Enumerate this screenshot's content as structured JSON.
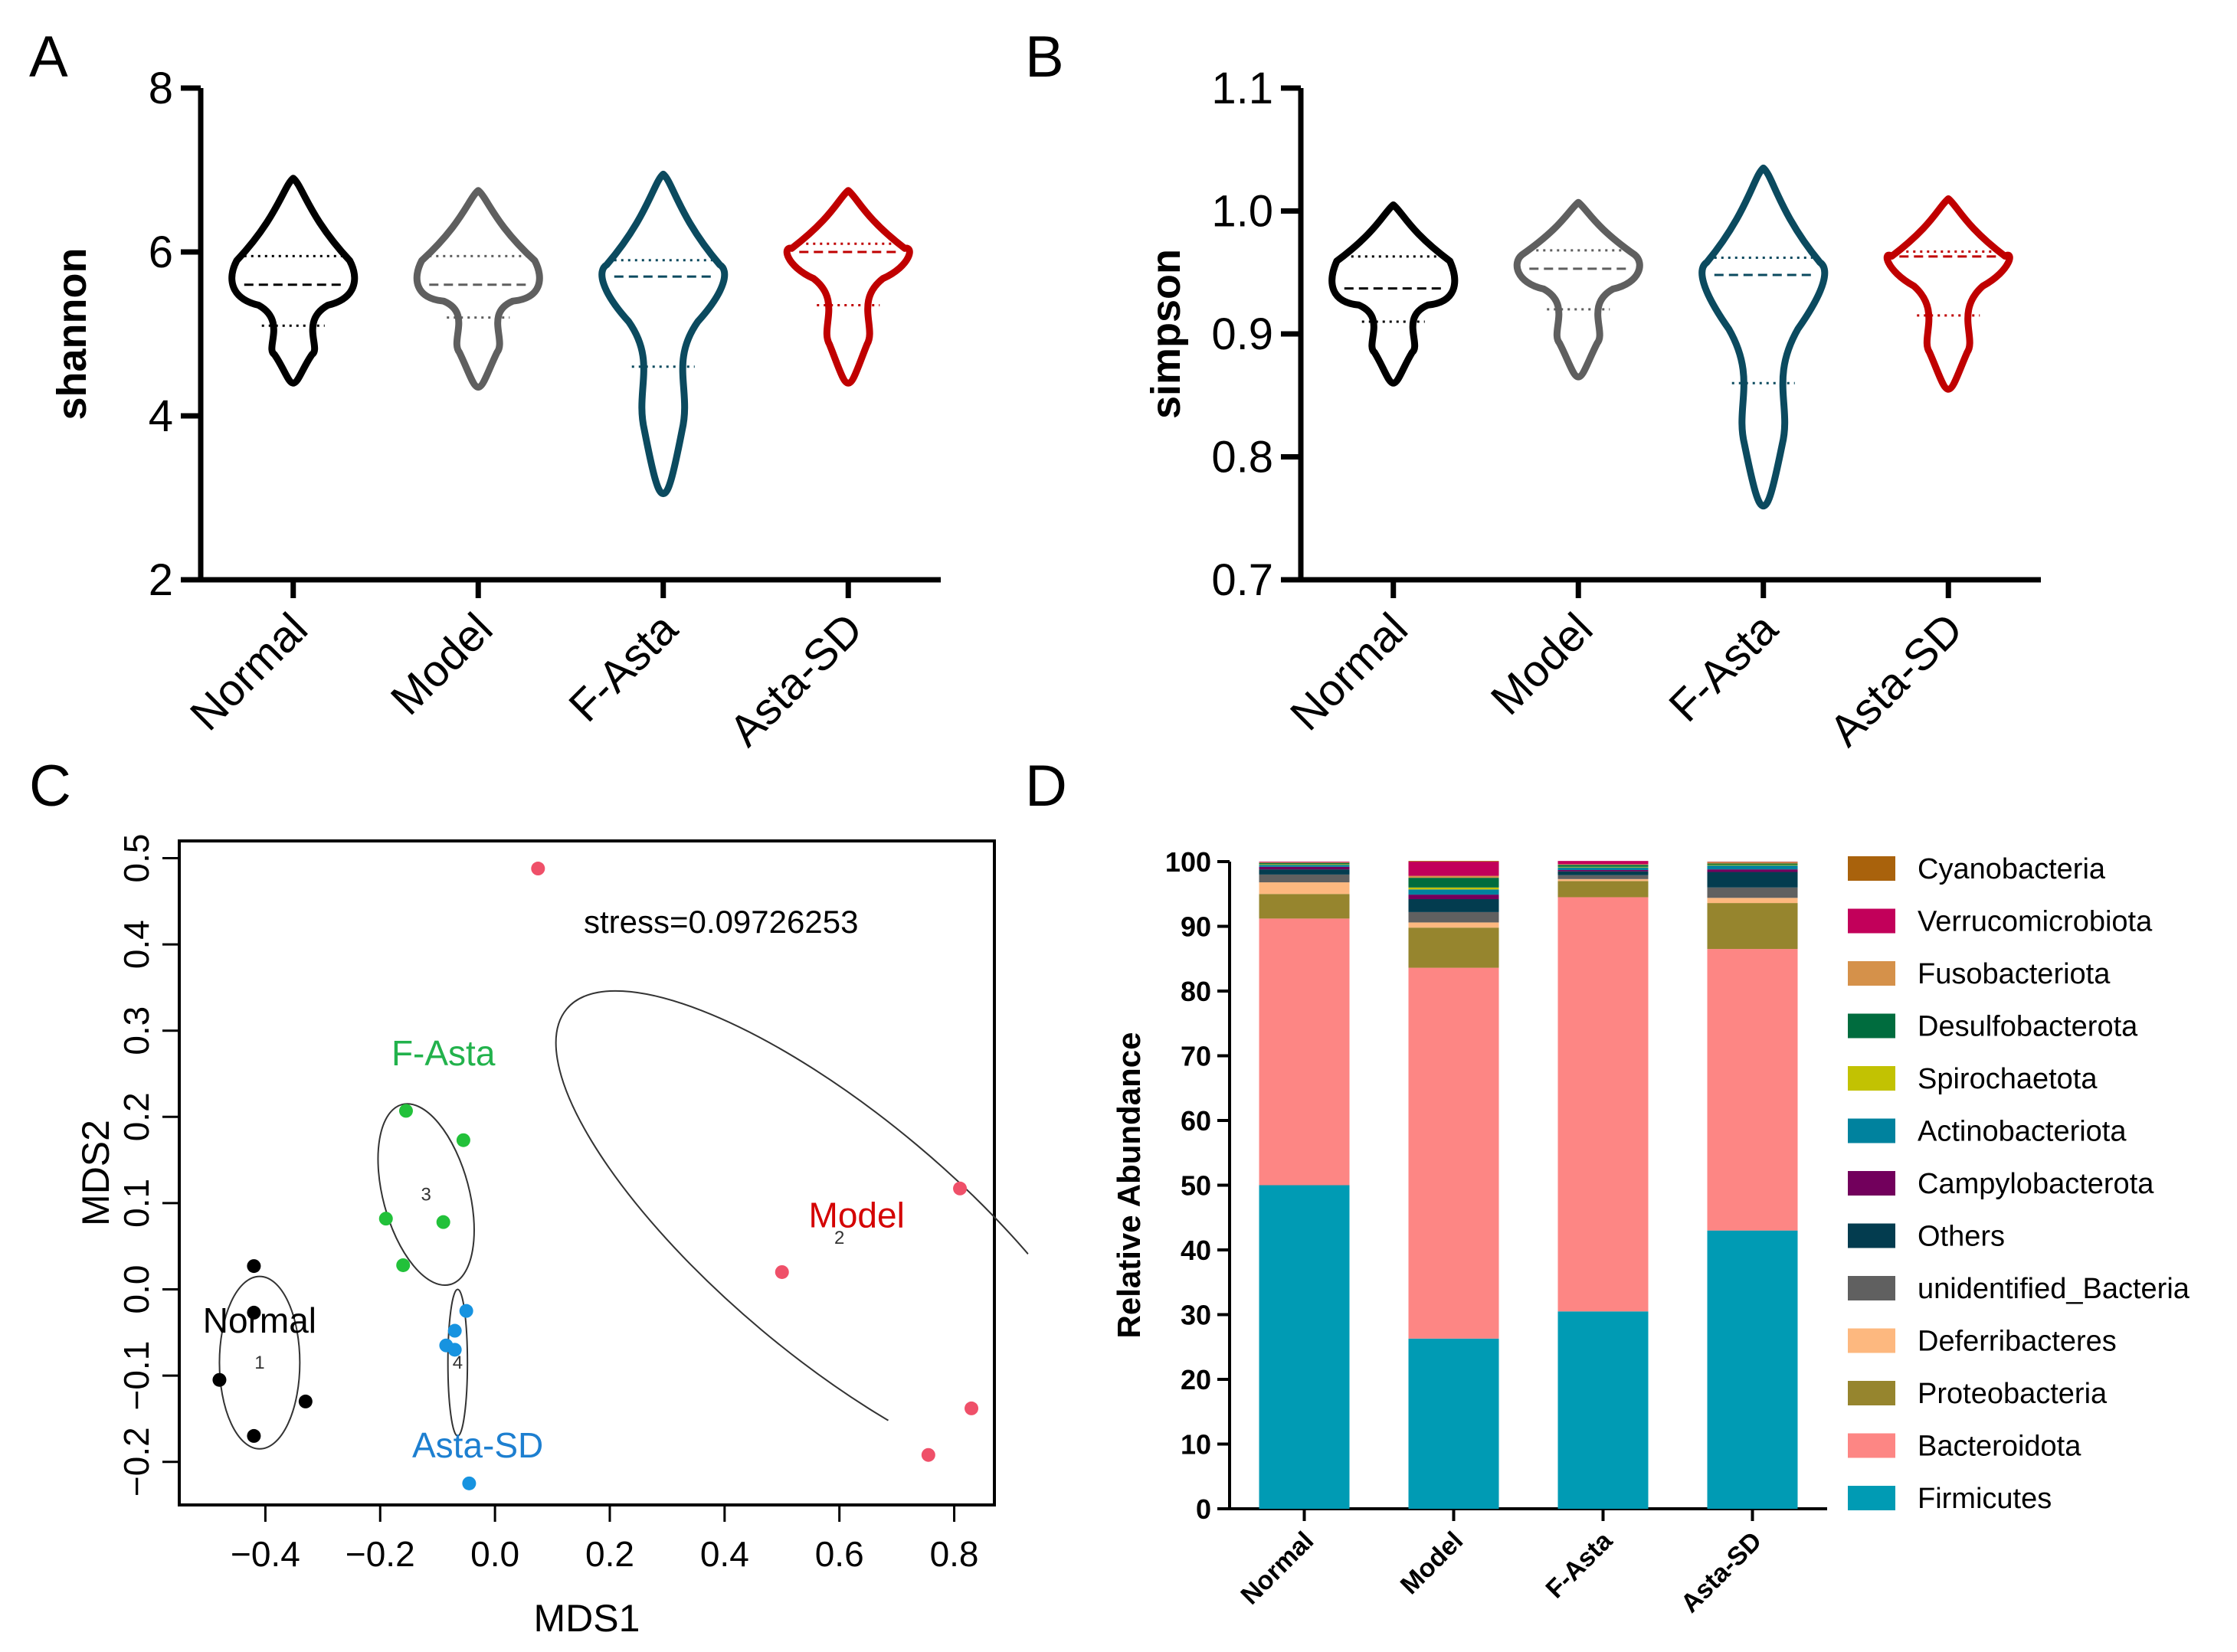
{
  "panels": {
    "A": {
      "letter": "A"
    },
    "B": {
      "letter": "B"
    },
    "C": {
      "letter": "C"
    },
    "D": {
      "letter": "D"
    }
  },
  "chart_data": [
    {
      "panel": "A",
      "type": "violin",
      "ylabel": "shannon",
      "ylim": [
        2,
        8
      ],
      "yticks": [
        2,
        4,
        6,
        8
      ],
      "categories": [
        "Normal",
        "Model",
        "F-Asta",
        "Asta-SD"
      ],
      "colors": [
        "#000000",
        "#5f5f5f",
        "#0b4a5f",
        "#c00000"
      ],
      "groups": [
        {
          "name": "Normal",
          "min": 4.4,
          "max": 6.9,
          "median": 5.6,
          "q1": 5.1,
          "q3": 5.95
        },
        {
          "name": "Model",
          "min": 4.35,
          "max": 6.75,
          "median": 5.6,
          "q1": 5.2,
          "q3": 5.95
        },
        {
          "name": "F-Asta",
          "min": 3.05,
          "max": 6.95,
          "median": 5.7,
          "q1": 4.6,
          "q3": 5.9
        },
        {
          "name": "Asta-SD",
          "min": 4.4,
          "max": 6.75,
          "median": 6.0,
          "q1": 5.35,
          "q3": 6.1
        }
      ]
    },
    {
      "panel": "B",
      "type": "violin",
      "ylabel": "simpson",
      "ylim": [
        0.7,
        1.1
      ],
      "yticks": [
        0.7,
        0.8,
        0.9,
        1.0,
        1.1
      ],
      "ytick_labels": [
        "0.7",
        "0.8",
        "0.9",
        "1.0",
        "1.1"
      ],
      "categories": [
        "Normal",
        "Model",
        "F-Asta",
        "Asta-SD"
      ],
      "colors": [
        "#000000",
        "#5f5f5f",
        "#0b4a5f",
        "#c00000"
      ],
      "groups": [
        {
          "name": "Normal",
          "min": 0.86,
          "max": 1.005,
          "median": 0.937,
          "q1": 0.91,
          "q3": 0.963
        },
        {
          "name": "Model",
          "min": 0.865,
          "max": 1.007,
          "median": 0.953,
          "q1": 0.92,
          "q3": 0.968
        },
        {
          "name": "F-Asta",
          "min": 0.76,
          "max": 1.035,
          "median": 0.948,
          "q1": 0.86,
          "q3": 0.962
        },
        {
          "name": "Asta-SD",
          "min": 0.855,
          "max": 1.01,
          "median": 0.963,
          "q1": 0.915,
          "q3": 0.967
        }
      ]
    },
    {
      "panel": "C",
      "type": "scatter",
      "xlabel": "MDS1",
      "ylabel": "MDS2",
      "xlim": [
        -0.55,
        0.87
      ],
      "ylim": [
        -0.25,
        0.52
      ],
      "xticks": [
        -0.4,
        -0.2,
        0.0,
        0.2,
        0.4,
        0.6,
        0.8
      ],
      "xtick_labels": [
        "−0.4",
        "−0.2",
        "0.0",
        "0.2",
        "0.4",
        "0.6",
        "0.8"
      ],
      "yticks": [
        -0.2,
        -0.1,
        0.0,
        0.1,
        0.2,
        0.3,
        0.4,
        0.5
      ],
      "ytick_labels": [
        "−0.2",
        "−0.1",
        "0.0",
        "0.1",
        "0.2",
        "0.3",
        "0.4",
        "0.5"
      ],
      "annotation": "stress=0.09726253",
      "groups": [
        {
          "name": "Normal",
          "id": "1",
          "color": "#000000",
          "label_color": "#000000",
          "points": [
            [
              -0.42,
              0.027
            ],
            [
              -0.42,
              -0.027
            ],
            [
              -0.48,
              -0.105
            ],
            [
              -0.42,
              -0.17
            ],
            [
              -0.33,
              -0.13
            ]
          ],
          "center": [
            -0.41,
            -0.085
          ],
          "ellipse": {
            "rx": 0.07,
            "ry": 0.1,
            "angle": 0
          },
          "label_pos": [
            -0.41,
            -0.05
          ]
        },
        {
          "name": "Model",
          "id": "2",
          "color": "#ef5069",
          "label_color": "#d40000",
          "points": [
            [
              0.075,
              0.488
            ],
            [
              0.81,
              0.117
            ],
            [
              0.5,
              0.02
            ],
            [
              0.83,
              -0.138
            ],
            [
              0.755,
              -0.192
            ]
          ],
          "center": [
            0.6,
            0.06
          ],
          "ellipse": {
            "rx": 0.62,
            "ry": 0.14,
            "angle": -40
          },
          "label_pos": [
            0.63,
            0.072
          ]
        },
        {
          "name": "F-Asta",
          "id": "3",
          "color": "#22c13a",
          "label_color": "#22b24c",
          "points": [
            [
              -0.155,
              0.207
            ],
            [
              -0.055,
              0.173
            ],
            [
              -0.19,
              0.082
            ],
            [
              -0.09,
              0.078
            ],
            [
              -0.16,
              0.028
            ]
          ],
          "center": [
            -0.12,
            0.11
          ],
          "ellipse": {
            "rx": 0.075,
            "ry": 0.108,
            "angle": 15
          },
          "label_pos": [
            -0.09,
            0.26
          ]
        },
        {
          "name": "Asta-SD",
          "id": "4",
          "color": "#1793e0",
          "label_color": "#1d7fd0",
          "points": [
            [
              -0.05,
              -0.025
            ],
            [
              -0.07,
              -0.048
            ],
            [
              -0.085,
              -0.065
            ],
            [
              -0.07,
              -0.07
            ],
            [
              -0.045,
              -0.225
            ]
          ],
          "center": [
            -0.065,
            -0.085
          ],
          "ellipse": {
            "rx": 0.017,
            "ry": 0.085,
            "angle": 0
          },
          "label_pos": [
            -0.03,
            -0.195
          ]
        }
      ]
    },
    {
      "panel": "D",
      "type": "stacked-bar",
      "ylabel": "Relative Abundance",
      "ylim": [
        0,
        100
      ],
      "yticks": [
        0,
        10,
        20,
        30,
        40,
        50,
        60,
        70,
        80,
        90,
        100
      ],
      "categories": [
        "Normal",
        "Model",
        "F-Asta",
        "Asta-SD"
      ],
      "series": [
        {
          "name": "Firmicutes",
          "color": "#009bb4",
          "values": [
            50,
            26.3,
            30.5,
            43
          ]
        },
        {
          "name": "Bacteroidota",
          "color": "#fd8684",
          "values": [
            41.2,
            57.3,
            64.0,
            43.5
          ]
        },
        {
          "name": "Proteobacteria",
          "color": "#96852e",
          "values": [
            3.8,
            6.2,
            2.5,
            7.1
          ]
        },
        {
          "name": "Deferribacteres",
          "color": "#fdb87f",
          "values": [
            1.8,
            0.8,
            0.3,
            0.8
          ]
        },
        {
          "name": "unidentified_Bacteria",
          "color": "#606060",
          "values": [
            1.2,
            1.6,
            0.6,
            1.6
          ]
        },
        {
          "name": "Others",
          "color": "#033c4f",
          "values": [
            0.8,
            2.0,
            0.6,
            2.4
          ]
        },
        {
          "name": "Campylobacterota",
          "color": "#72005c",
          "values": [
            0.4,
            0.7,
            0.2,
            0.4
          ]
        },
        {
          "name": "Actinobacteriota",
          "color": "#00829e",
          "values": [
            0.3,
            0.8,
            0.4,
            0.6
          ]
        },
        {
          "name": "Spirochaetota",
          "color": "#c2c202",
          "values": [
            0.1,
            0.3,
            0.1,
            0.1
          ]
        },
        {
          "name": "Desulfobacterota",
          "color": "#006c3e",
          "values": [
            0.2,
            1.5,
            0.3,
            0.2
          ]
        },
        {
          "name": "Fusobacteriota",
          "color": "#d5914a",
          "values": [
            0.1,
            0.3,
            0.1,
            0.2
          ]
        },
        {
          "name": "Verrucomicrobiota",
          "color": "#c2005a",
          "values": [
            0.1,
            2.2,
            0.5,
            0.05
          ]
        },
        {
          "name": "Cyanobacteria",
          "color": "#a9620c",
          "values": [
            0.0,
            0.1,
            0.0,
            0.05
          ]
        }
      ],
      "legend_order": [
        "Cyanobacteria",
        "Verrucomicrobiota",
        "Fusobacteriota",
        "Desulfobacterota",
        "Spirochaetota",
        "Actinobacteriota",
        "Campylobacterota",
        "Others",
        "unidentified_Bacteria",
        "Deferribacteres",
        "Proteobacteria",
        "Bacteroidota",
        "Firmicutes"
      ]
    }
  ]
}
